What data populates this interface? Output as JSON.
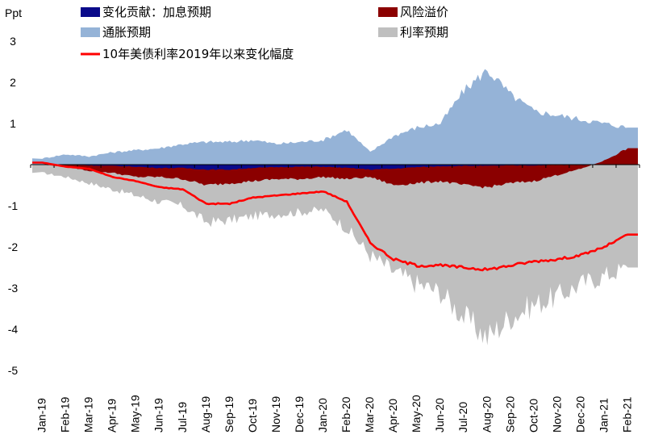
{
  "chart_data": {
    "type": "area",
    "title": "",
    "ylabel": "Ppt",
    "xlabel": "",
    "ylim": [
      -5,
      3.5
    ],
    "yticks": [
      3,
      2,
      1,
      -1,
      -2,
      -3,
      -4,
      -5
    ],
    "categories": [
      "Jan-19",
      "Feb-19",
      "Mar-19",
      "Apr-19",
      "May-19",
      "Jun-19",
      "Jul-19",
      "Aug-19",
      "Sep-19",
      "Oct-19",
      "Nov-19",
      "Dec-19",
      "Jan-20",
      "Feb-20",
      "Mar-20",
      "Apr-20",
      "May-20",
      "Jun-20",
      "Jul-20",
      "Aug-20",
      "Sep-20",
      "Oct-20",
      "Nov-20",
      "Dec-20",
      "Jan-21",
      "Feb-21"
    ],
    "legend_position": "top",
    "series": [
      {
        "name": "变化贡献：加息预期",
        "type": "area",
        "color": "#0a0a8a",
        "values": [
          0,
          0,
          -0.02,
          -0.03,
          -0.05,
          -0.08,
          -0.08,
          -0.12,
          -0.12,
          -0.08,
          -0.06,
          -0.05,
          -0.05,
          -0.08,
          -0.12,
          -0.1,
          -0.06,
          -0.04,
          -0.03,
          -0.03,
          -0.02,
          -0.02,
          -0.01,
          -0.01,
          0,
          0
        ]
      },
      {
        "name": "风险溢价",
        "type": "area",
        "color": "#8b0000",
        "values": [
          0,
          -0.05,
          -0.15,
          -0.2,
          -0.3,
          -0.3,
          -0.35,
          -0.5,
          -0.45,
          -0.4,
          -0.35,
          -0.35,
          -0.3,
          -0.35,
          -0.3,
          -0.5,
          -0.45,
          -0.4,
          -0.5,
          -0.55,
          -0.45,
          -0.4,
          -0.25,
          -0.1,
          0.1,
          0.4
        ]
      },
      {
        "name": "通胀预期",
        "type": "area",
        "color": "#95b3d7",
        "values": [
          0.15,
          0.25,
          0.2,
          0.3,
          0.35,
          0.4,
          0.5,
          0.55,
          0.55,
          0.6,
          0.5,
          0.55,
          0.6,
          0.85,
          0.3,
          0.7,
          0.9,
          1.0,
          1.8,
          2.3,
          1.7,
          1.3,
          1.2,
          1.1,
          1.0,
          0.9
        ]
      },
      {
        "name": "利率预期",
        "type": "area",
        "color": "#bfbfbf",
        "values": [
          -0.2,
          -0.3,
          -0.45,
          -0.6,
          -0.75,
          -0.9,
          -1.0,
          -1.4,
          -1.35,
          -1.25,
          -1.2,
          -1.15,
          -1.1,
          -1.55,
          -2.2,
          -2.6,
          -2.9,
          -3.1,
          -3.7,
          -4.2,
          -3.7,
          -3.4,
          -3.2,
          -2.9,
          -2.7,
          -2.5
        ]
      },
      {
        "name": "10年美债利率2019年以来变化幅度",
        "type": "line",
        "color": "#ff0000",
        "values": [
          0.05,
          -0.05,
          -0.1,
          -0.3,
          -0.4,
          -0.55,
          -0.6,
          -0.95,
          -0.95,
          -0.8,
          -0.75,
          -0.7,
          -0.65,
          -0.9,
          -1.9,
          -2.3,
          -2.45,
          -2.45,
          -2.5,
          -2.55,
          -2.45,
          -2.35,
          -2.3,
          -2.2,
          -2.0,
          -1.7
        ]
      }
    ]
  }
}
